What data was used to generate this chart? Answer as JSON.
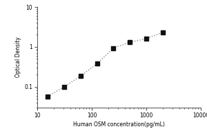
{
  "title": "",
  "xlabel": "Human OSM concentration(pg/mL)",
  "ylabel": "Optical Density",
  "x_data": [
    15.6,
    31.2,
    62.5,
    125,
    250,
    500,
    1000,
    2000
  ],
  "y_data": [
    0.057,
    0.1,
    0.185,
    0.38,
    0.93,
    1.3,
    1.6,
    2.3
  ],
  "xlim": [
    10,
    10000
  ],
  "ylim": [
    0.03,
    10
  ],
  "xticks": [
    10,
    100,
    1000,
    10000
  ],
  "xtick_labels": [
    "10",
    "100",
    "1000",
    "10000"
  ],
  "yticks": [
    0.1,
    1
  ],
  "ytick_labels": [
    "0.1",
    "1"
  ],
  "ytick_top": 10,
  "ytick_top_label": "10",
  "marker": "s",
  "marker_color": "#111111",
  "marker_size": 3.5,
  "line_style": ":",
  "line_color": "#888888",
  "line_width": 1.0,
  "font_size_label": 5.5,
  "font_size_tick": 5.5,
  "background_color": "#ffffff"
}
